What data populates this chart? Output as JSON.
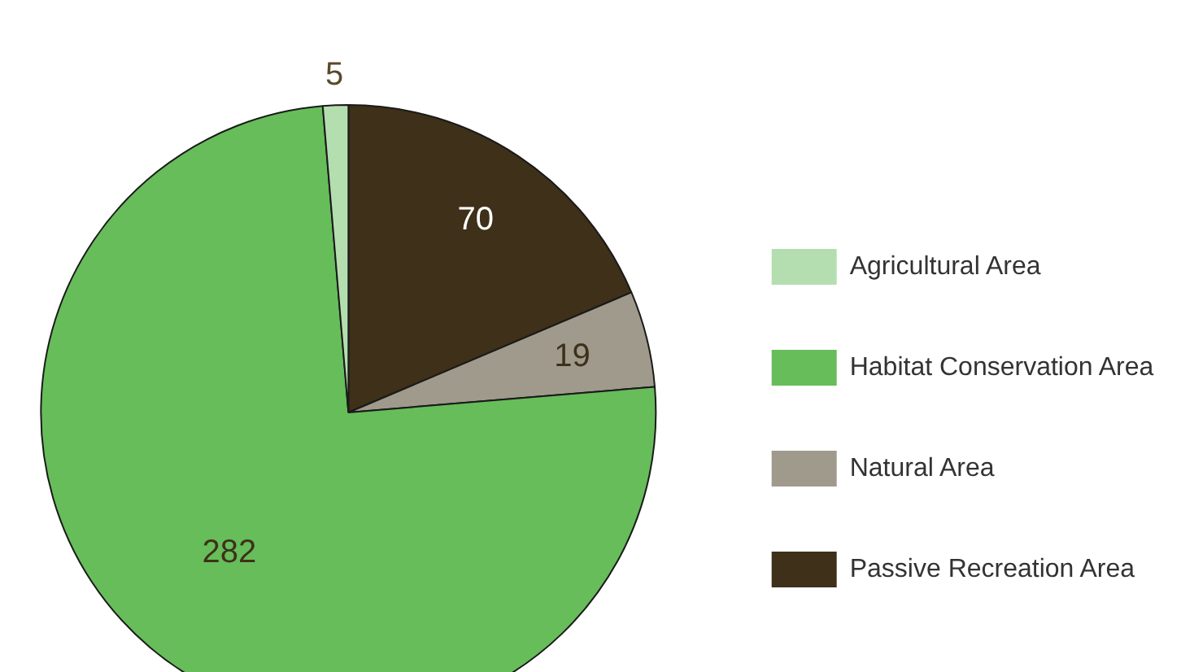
{
  "chart_data": {
    "type": "pie",
    "categories": [
      "Passive Recreation Area",
      "Natural Area",
      "Habitat Conservation Area",
      "Agricultural Area"
    ],
    "values": [
      70,
      19,
      282,
      5
    ],
    "colors": [
      "#3e3019",
      "#a09a8c",
      "#66bd5a",
      "#b5deb0"
    ],
    "data_labels": true,
    "legend": "right"
  }
}
